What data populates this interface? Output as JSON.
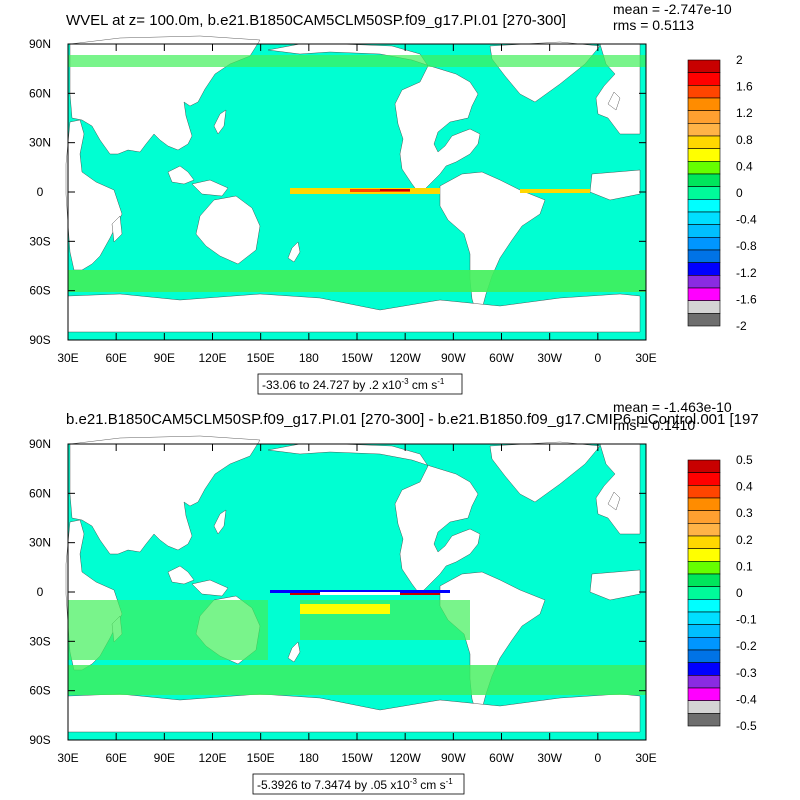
{
  "colors": {
    "land": "#ffffff",
    "palette": [
      "#6e6e6e",
      "#d4d4d4",
      "#ff00ff",
      "#8a2be2",
      "#0000ff",
      "#0073e6",
      "#0096ff",
      "#00bfff",
      "#00dfff",
      "#00ffff",
      "#00fa9a",
      "#00e65c",
      "#66ff00",
      "#ffff00",
      "#ffd700",
      "#ffb347",
      "#ffa030",
      "#ff8c00",
      "#ff4500",
      "#ff0000",
      "#c80000"
    ],
    "ocean_top": "#00ffd2",
    "ocean_bottom": "#40ef5a"
  },
  "panels": [
    {
      "title": "WVEL at z= 100.0m, b.e21.B1850CAM5CLM50SP.f09_g17.PI.01 [270-300]",
      "mean": "mean = -2.747e-10",
      "rms": "rms = 0.5113",
      "range_text": "-33.06 to 24.727 by .2 x10",
      "range_exp": "-3",
      "range_unit": " cm s",
      "range_unit_exp": "-1",
      "x_ticks": [
        "30E",
        "60E",
        "90E",
        "120E",
        "150E",
        "180",
        "150W",
        "120W",
        "90W",
        "60W",
        "30W",
        "0",
        "30E"
      ],
      "y_ticks": [
        "90N",
        "60N",
        "30N",
        "0",
        "30S",
        "60S",
        "90S"
      ],
      "colorbar_labels": [
        "2",
        "1.6",
        "1.2",
        "0.8",
        "0.4",
        "0",
        "-0.4",
        "-0.8",
        "-1.2",
        "-1.6",
        "-2"
      ]
    },
    {
      "title": "b.e21.B1850CAM5CLM50SP.f09_g17.PI.01 [270-300] - b.e21.B1850.f09_g17.CMIP6-piControl.001 [197",
      "mean": "mean = -1.463e-10",
      "rms": "rms = 0.1410",
      "range_text": "-5.3926 to 7.3474 by .05 x10",
      "range_exp": "-3",
      "range_unit": " cm s",
      "range_unit_exp": "-1",
      "x_ticks": [
        "30E",
        "60E",
        "90E",
        "120E",
        "150E",
        "180",
        "150W",
        "120W",
        "90W",
        "60W",
        "30W",
        "0",
        "30E"
      ],
      "y_ticks": [
        "90N",
        "60N",
        "30N",
        "0",
        "30S",
        "60S",
        "90S"
      ],
      "colorbar_labels": [
        "0.5",
        "0.4",
        "0.3",
        "0.2",
        "0.1",
        "0",
        "-0.1",
        "-0.2",
        "-0.3",
        "-0.4",
        "-0.5"
      ]
    }
  ]
}
